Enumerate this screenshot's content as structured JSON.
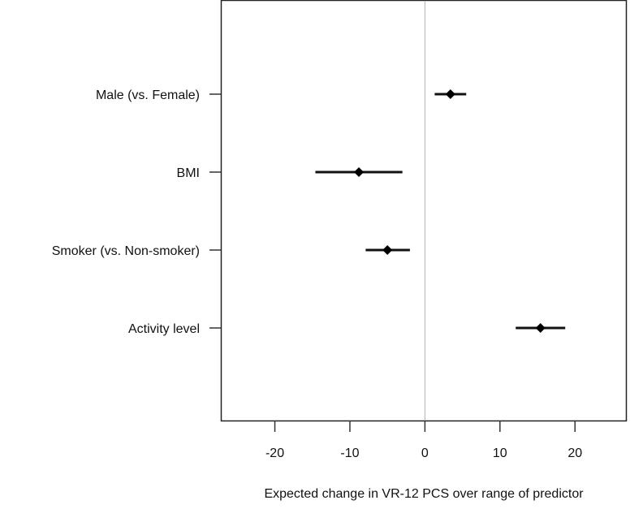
{
  "chart_data": {
    "type": "forest",
    "title": "",
    "xlabel": "Expected change in VR-12 PCS over range of predictor",
    "ylabel": "",
    "xlim": [
      -27.2,
      26.9
    ],
    "xticks": [
      -20,
      -10,
      0,
      10,
      20
    ],
    "reference_line": 0,
    "grid": false,
    "categories": [
      "Male (vs. Female)",
      "BMI",
      "Smoker (vs. Non-smoker)",
      "Activity level"
    ],
    "estimates": [
      3.4,
      -8.8,
      -5.0,
      15.4
    ],
    "lower": [
      1.3,
      -14.6,
      -7.9,
      12.1
    ],
    "upper": [
      5.5,
      -3.0,
      -2.0,
      18.7
    ],
    "colors": {
      "point": "#000000",
      "reference": "#b0b0b0",
      "axis": "#222222"
    }
  }
}
